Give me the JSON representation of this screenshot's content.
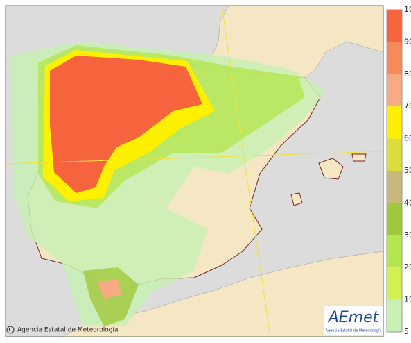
{
  "legend": {
    "labels": [
      "10",
      "90",
      "80",
      "70",
      "60",
      "50",
      "40",
      "30",
      "20",
      "10",
      "5"
    ],
    "colors": [
      "#f5643c",
      "#f68a5a",
      "#f8aa82",
      "#fff000",
      "#dcdc3c",
      "#c8b87a",
      "#a0c83c",
      "#b4e650",
      "#d2f050",
      "#c8f0b4"
    ]
  },
  "credit": "Agencia Estatal de Meteorología",
  "logo": {
    "text": "AEmet",
    "subtitle": "Agencia Estatal de Meteorología"
  }
}
